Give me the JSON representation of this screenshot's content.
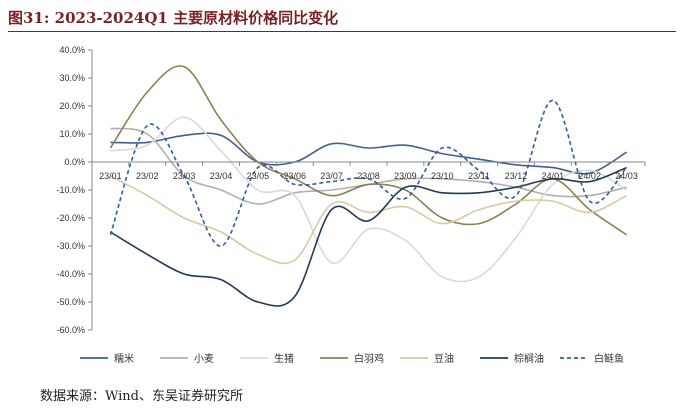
{
  "figure": {
    "title": "图31:  2023-2024Q1 主要原材料价格同比变化",
    "source": "数据来源：Wind、东吴证券研究所"
  },
  "chart_data": {
    "type": "line",
    "ylim": [
      -60,
      40
    ],
    "ytick_values": [
      40,
      30,
      20,
      10,
      0,
      -10,
      -20,
      -30,
      -40,
      -50,
      -60
    ],
    "ytick_labels": [
      "40.0%",
      "30.0%",
      "20.0%",
      "10.0%",
      "0.0%",
      "-10.0%",
      "-20.0%",
      "-30.0%",
      "-40.0%",
      "-50.0%",
      "-60.0%"
    ],
    "categories": [
      "23/01",
      "23/02",
      "23/03",
      "23/04",
      "23/05",
      "23/06",
      "23/07",
      "23/08",
      "23/09",
      "23/10",
      "23/11",
      "23/12",
      "24/01",
      "24/02",
      "24/03"
    ],
    "grid": false,
    "legend_position": "bottom",
    "series": [
      {
        "name": "糯米",
        "color": "#41618f",
        "dash": false,
        "values": [
          7,
          7,
          9.5,
          9.5,
          0,
          0,
          6.5,
          5,
          6,
          3,
          1,
          -1,
          -2,
          -4,
          3.5
        ]
      },
      {
        "name": "小麦",
        "color": "#b0b0b0",
        "dash": false,
        "values": [
          12,
          10,
          -5,
          -10,
          -15,
          -11,
          -10,
          -8,
          -6,
          -6,
          -7,
          -9,
          -12,
          -12,
          -9
        ]
      },
      {
        "name": "生猪",
        "color": "#d9d9d9",
        "dash": false,
        "values": [
          4,
          6,
          16,
          4,
          -10,
          -12,
          -36,
          -24,
          -28,
          -41,
          -41,
          -27,
          -8,
          -3,
          -10
        ]
      },
      {
        "name": "白羽鸡",
        "color": "#8e8052",
        "dash": false,
        "values": [
          5,
          25,
          34,
          15,
          0,
          -6,
          -12,
          -8,
          -10,
          -20,
          -22,
          -15,
          -6,
          -17,
          -26
        ]
      },
      {
        "name": "豆油",
        "color": "#d9c9a3",
        "dash": false,
        "values": [
          -5,
          -12,
          -20,
          -25,
          -33,
          -35,
          -15,
          -18,
          -16,
          -22,
          -17,
          -14,
          -14,
          -18,
          -12
        ]
      },
      {
        "name": "棕榈油",
        "color": "#1f3b5a",
        "dash": false,
        "values": [
          -25,
          -33,
          -40,
          -42,
          -50,
          -48,
          -17,
          -21,
          -9,
          -11,
          -11,
          -9,
          -6,
          -7,
          -2
        ]
      },
      {
        "name": "白鲢鱼",
        "color": "#2f5d9c",
        "dash": true,
        "values": [
          -26,
          13,
          -5,
          -30,
          -2,
          -8,
          -7,
          -6,
          -13,
          5,
          -3,
          -12,
          22,
          -14,
          -2
        ]
      }
    ]
  }
}
